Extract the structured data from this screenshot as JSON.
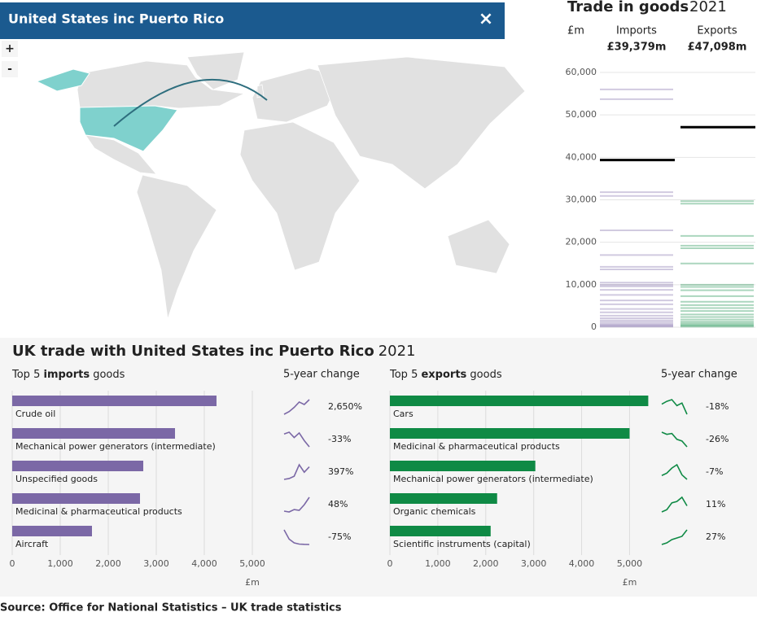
{
  "header": {
    "title": "United States inc Puerto Rico",
    "close": "×",
    "zoom_in": "+",
    "zoom_out": "-"
  },
  "section": {
    "title": "UK trade with United States inc Puerto Rico",
    "year": "2021"
  },
  "footer": {
    "source": "Source: Office for National Statistics – UK trade statistics"
  },
  "chart_data": [
    {
      "type": "strip",
      "title": "Trade in goods",
      "year": "2021",
      "unit_label": "£m",
      "ylim": [
        0,
        60000
      ],
      "yticks": [
        0,
        {
          "value": 10000,
          "label": "10,000"
        },
        {
          "value": 20000,
          "label": "20,000"
        },
        {
          "value": 30000,
          "label": "30,000"
        },
        {
          "value": 40000,
          "label": "40,000"
        },
        {
          "value": 50000,
          "label": "50,000"
        },
        {
          "value": 60000,
          "label": "60,000"
        }
      ],
      "highlight_color": "#000000",
      "series": [
        {
          "name": "Imports",
          "color": "#7b68a6",
          "value": 39379,
          "value_label": "£39,379m",
          "values": [
            56000,
            53700,
            31800,
            30900,
            22800,
            17000,
            14200,
            13600,
            10500,
            10000,
            9600,
            8800,
            7600,
            6300,
            5400,
            4300,
            3500,
            2700,
            2100,
            1600,
            1200,
            800,
            500,
            300,
            150
          ]
        },
        {
          "name": "Exports",
          "color": "#0f8a45",
          "value": 47098,
          "value_label": "£47,098m",
          "values": [
            29700,
            29100,
            21500,
            19200,
            18600,
            15000,
            10000,
            9500,
            8700,
            7300,
            6000,
            5200,
            4500,
            3800,
            3000,
            2400,
            1800,
            1300,
            900,
            600,
            350,
            150
          ]
        }
      ]
    },
    {
      "type": "bar",
      "title_parts": [
        "Top 5 ",
        "imports",
        " goods"
      ],
      "change_title": "5-year change",
      "xlabel": "£m",
      "color": "#7b68a6",
      "categories": [
        "Crude oil",
        "Mechanical power generators (intermediate)",
        "Unspecified goods",
        "Medicinal & pharmaceutical products",
        "Aircraft"
      ],
      "values": [
        4254,
        3390,
        2729,
        2661,
        1661
      ],
      "changes": [
        2650,
        -33,
        397,
        48,
        -75
      ],
      "change_labels": [
        "2,650%",
        "-33%",
        "397%",
        "48%",
        "-75%"
      ],
      "sparklines": [
        [
          155,
          900,
          2100,
          3600,
          2900,
          4270
        ],
        [
          5060,
          5300,
          4600,
          5200,
          4200,
          3390
        ],
        [
          550,
          700,
          1100,
          3100,
          1800,
          2730
        ],
        [
          1800,
          1750,
          1900,
          1850,
          2200,
          2660
        ],
        [
          6640,
          3500,
          2200,
          1800,
          1700,
          1660
        ]
      ],
      "xlim": [
        0,
        5000
      ],
      "xticks": [
        0,
        {
          "value": 1000,
          "label": "1,000"
        },
        {
          "value": 2000,
          "label": "2,000"
        },
        {
          "value": 3000,
          "label": "3,000"
        },
        {
          "value": 4000,
          "label": "4,000"
        },
        {
          "value": 5000,
          "label": "5,000"
        }
      ]
    },
    {
      "type": "bar",
      "title_parts": [
        "Top 5 ",
        "exports",
        " goods"
      ],
      "change_title": "5-year change",
      "xlabel": "£m",
      "color": "#0f8a45",
      "categories": [
        "Cars",
        "Medicinal & pharmaceutical products",
        "Mechanical power generators (intermediate)",
        "Organic chemicals",
        "Scientific instruments (capital)"
      ],
      "values": [
        5390,
        5000,
        3034,
        2237,
        2102
      ],
      "changes": [
        -18,
        -26,
        -7,
        11,
        27
      ],
      "change_labels": [
        "-18%",
        "-26%",
        "-7%",
        "11%",
        "27%"
      ],
      "sparklines": [
        [
          6570,
          6900,
          7100,
          6400,
          6700,
          5390
        ],
        [
          6760,
          6500,
          6600,
          5900,
          5700,
          5000
        ],
        [
          3260,
          3400,
          3700,
          3900,
          3300,
          3030
        ],
        [
          2020,
          2100,
          2350,
          2400,
          2550,
          2240
        ],
        [
          1650,
          1700,
          1800,
          1850,
          1900,
          2100
        ]
      ],
      "xlim": [
        0,
        5400
      ],
      "xticks": [
        0,
        {
          "value": 1000,
          "label": "1,000"
        },
        {
          "value": 2000,
          "label": "2,000"
        },
        {
          "value": 3000,
          "label": "3,000"
        },
        {
          "value": 4000,
          "label": "4,000"
        },
        {
          "value": 5000,
          "label": "5,000"
        }
      ]
    }
  ]
}
